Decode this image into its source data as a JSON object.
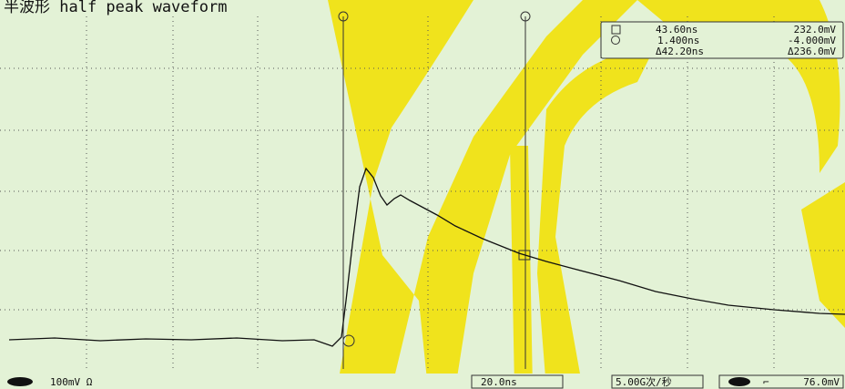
{
  "title": "半波形 half peak waveform",
  "cursor_readout": {
    "row1": {
      "time": "43.60ns",
      "voltage": "232.0mV"
    },
    "row2": {
      "time": "1.400ns",
      "voltage": "-4.000mV"
    },
    "delta": {
      "time": "Δ42.20ns",
      "voltage": "Δ236.0mV"
    }
  },
  "status_bar": {
    "channel_scale": "100mV Ω",
    "time_scale": "20.0ns",
    "sample_rate": "5.00G次/秒",
    "trigger_level": "76.0mV"
  }
}
